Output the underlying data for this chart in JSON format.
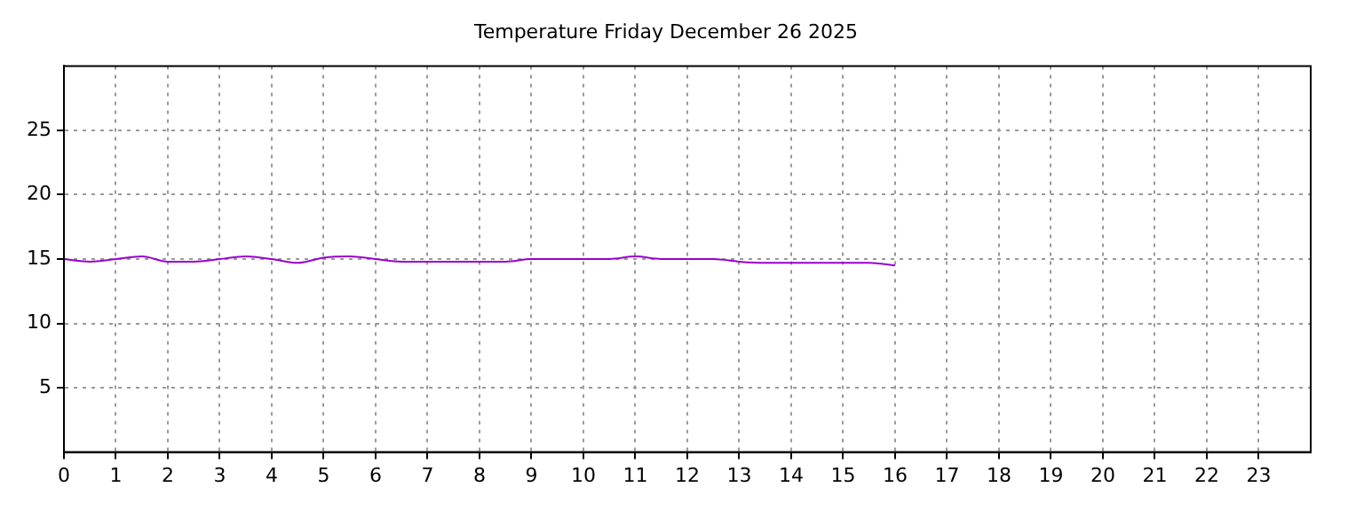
{
  "chart_data": {
    "type": "line",
    "title": "Temperature Friday December 26 2025",
    "x": [
      0,
      0.5,
      1,
      1.5,
      2,
      2.5,
      3,
      3.5,
      4,
      4.5,
      5,
      5.5,
      6,
      6.5,
      7,
      7.5,
      8,
      8.5,
      9,
      9.5,
      10,
      10.5,
      11,
      11.5,
      12,
      12.5,
      13,
      13.5,
      14,
      14.5,
      15,
      15.5,
      16
    ],
    "series": [
      {
        "color": "#9900cc",
        "values": [
          15.0,
          14.8,
          15.0,
          15.2,
          14.8,
          14.8,
          15.0,
          15.2,
          15.0,
          14.7,
          15.1,
          15.2,
          15.0,
          14.8,
          14.8,
          14.8,
          14.8,
          14.8,
          15.0,
          15.0,
          15.0,
          15.0,
          15.2,
          15.0,
          15.0,
          15.0,
          14.8,
          14.7,
          14.7,
          14.7,
          14.7,
          14.7,
          14.5
        ]
      }
    ],
    "xlim": [
      0,
      24
    ],
    "xticks": [
      0,
      1,
      2,
      3,
      4,
      5,
      6,
      7,
      8,
      9,
      10,
      11,
      12,
      13,
      14,
      15,
      16,
      17,
      18,
      19,
      20,
      21,
      22,
      23
    ],
    "ylim": [
      0,
      30
    ],
    "yticks": [
      5,
      10,
      15,
      20,
      25
    ],
    "grid": true,
    "legend": false,
    "marker": "none",
    "line_style": "solid"
  }
}
